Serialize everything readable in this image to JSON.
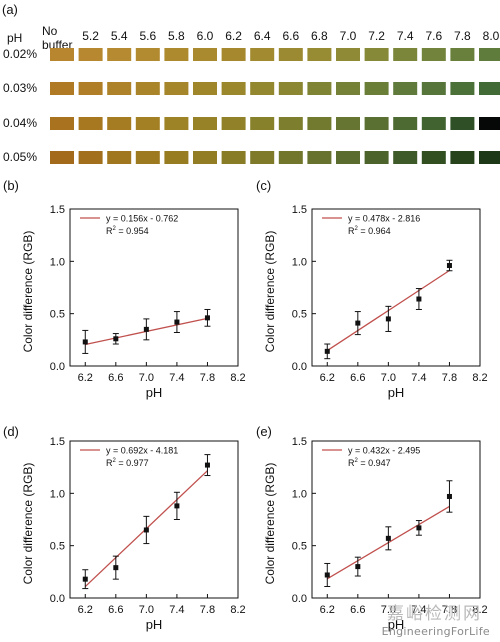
{
  "panel_a": {
    "label": "(a)",
    "corner_label": "pH",
    "no_buffer_line1": "No",
    "no_buffer_line2": "buffer",
    "ph_columns": [
      "5.2",
      "5.4",
      "5.6",
      "5.8",
      "6.0",
      "6.2",
      "6.4",
      "6.6",
      "6.8",
      "7.0",
      "7.2",
      "7.4",
      "7.6",
      "7.8",
      "8.0"
    ],
    "rows": [
      {
        "label": "0.02%",
        "colors": [
          "#b8862e",
          "#b7882f",
          "#b58a30",
          "#b28a2f",
          "#ad8a2e",
          "#a98a2e",
          "#a6892f",
          "#a28a30",
          "#9c8a32",
          "#978b34",
          "#8e8a36",
          "#858938",
          "#7b863a",
          "#72833c",
          "#68803c",
          "#5f7c3c"
        ]
      },
      {
        "label": "0.03%",
        "colors": [
          "#b07a24",
          "#b07e26",
          "#ad8228",
          "#aa8429",
          "#a6862a",
          "#a0862b",
          "#9b872c",
          "#93872f",
          "#8a8632",
          "#7f8434",
          "#748136",
          "#6a7e38",
          "#5f7a3a",
          "#55753a",
          "#4b7038",
          "#426a36"
        ]
      },
      {
        "label": "0.04%",
        "colors": [
          "#a8721e",
          "#a87820",
          "#a67c22",
          "#a38024",
          "#9e8226",
          "#988228",
          "#91822a",
          "#88812c",
          "#7d7e2e",
          "#727a30",
          "#667532",
          "#597032",
          "#4d6a32",
          "#41632f",
          "#2f5026",
          "#050806"
        ]
      },
      {
        "label": "0.05%",
        "colors": [
          "#a26a1a",
          "#a2701c",
          "#a0761e",
          "#9d7a20",
          "#987c22",
          "#927d24",
          "#897c27",
          "#7e7a2a",
          "#72762c",
          "#66722e",
          "#5a6c2e",
          "#4c642c",
          "#3e5a28",
          "#324f22",
          "#26431c",
          "#1c3816"
        ]
      }
    ]
  },
  "y_axis_title": "Color  difference (RGB)",
  "x_axis_title": "pH",
  "r2_prefix": "R",
  "r2_sup": "2",
  "line_color": "#c0504d",
  "chart_data": [
    {
      "panel": "(b)",
      "type": "scatter",
      "x": [
        6.2,
        6.6,
        7.0,
        7.4,
        7.8
      ],
      "y": [
        0.23,
        0.26,
        0.35,
        0.42,
        0.46
      ],
      "yerr": [
        0.11,
        0.05,
        0.1,
        0.1,
        0.08
      ],
      "fit_slope": 0.156,
      "fit_intercept": -0.762,
      "equation": "y = 0.156x - 0.762",
      "r2": " = 0.954",
      "xlim": [
        6.0,
        8.2
      ],
      "ylim": [
        0.0,
        1.5
      ],
      "xticks": [
        "6.2",
        "6.6",
        "7.0",
        "7.4",
        "7.8",
        "8.2"
      ],
      "yticks": [
        "0.0",
        "0.5",
        "1.0",
        "1.5"
      ],
      "xlabel": "pH",
      "ylabel": "Color  difference (RGB)"
    },
    {
      "panel": "(c)",
      "type": "scatter",
      "x": [
        6.2,
        6.6,
        7.0,
        7.4,
        7.8
      ],
      "y": [
        0.14,
        0.41,
        0.45,
        0.64,
        0.96
      ],
      "yerr": [
        0.07,
        0.11,
        0.12,
        0.1,
        0.05
      ],
      "fit_slope": 0.478,
      "fit_intercept": -2.816,
      "equation": "y = 0.478x - 2.816",
      "r2": " = 0.964",
      "xlim": [
        6.0,
        8.2
      ],
      "ylim": [
        0.0,
        1.5
      ],
      "xticks": [
        "6.2",
        "6.6",
        "7.0",
        "7.4",
        "7.8",
        "8.2"
      ],
      "yticks": [
        "0.0",
        "0.5",
        "1.0",
        "1.5"
      ],
      "xlabel": "pH",
      "ylabel": "Color  difference (RGB)"
    },
    {
      "panel": "(d)",
      "type": "scatter",
      "x": [
        6.2,
        6.6,
        7.0,
        7.4,
        7.8
      ],
      "y": [
        0.18,
        0.29,
        0.65,
        0.88,
        1.27
      ],
      "yerr": [
        0.09,
        0.11,
        0.13,
        0.13,
        0.1
      ],
      "fit_slope": 0.692,
      "fit_intercept": -4.181,
      "equation": "y = 0.692x - 4.181",
      "r2": " = 0.977",
      "xlim": [
        6.0,
        8.2
      ],
      "ylim": [
        0.0,
        1.5
      ],
      "xticks": [
        "6.2",
        "6.6",
        "7.0",
        "7.4",
        "7.8",
        "8.2"
      ],
      "yticks": [
        "0.0",
        "0.5",
        "1.0",
        "1.5"
      ],
      "xlabel": "pH",
      "ylabel": "Color  difference (RGB)"
    },
    {
      "panel": "(e)",
      "type": "scatter",
      "x": [
        6.2,
        6.6,
        7.0,
        7.4,
        7.8
      ],
      "y": [
        0.22,
        0.3,
        0.57,
        0.67,
        0.97
      ],
      "yerr": [
        0.11,
        0.09,
        0.11,
        0.07,
        0.15
      ],
      "fit_slope": 0.432,
      "fit_intercept": -2.495,
      "equation": "y = 0.432x - 2.495",
      "r2": " = 0.947",
      "xlim": [
        6.0,
        8.2
      ],
      "ylim": [
        0.0,
        1.5
      ],
      "xticks": [
        "6.2",
        "6.6",
        "7.0",
        "7.4",
        "7.8",
        "8.2"
      ],
      "yticks": [
        "0.0",
        "0.5",
        "1.0",
        "1.5"
      ],
      "xlabel": "pH",
      "ylabel": "Color  difference (RGB)"
    }
  ],
  "watermark": {
    "text": "EngineeringForLife",
    "cn": "嘉峪检测网"
  }
}
